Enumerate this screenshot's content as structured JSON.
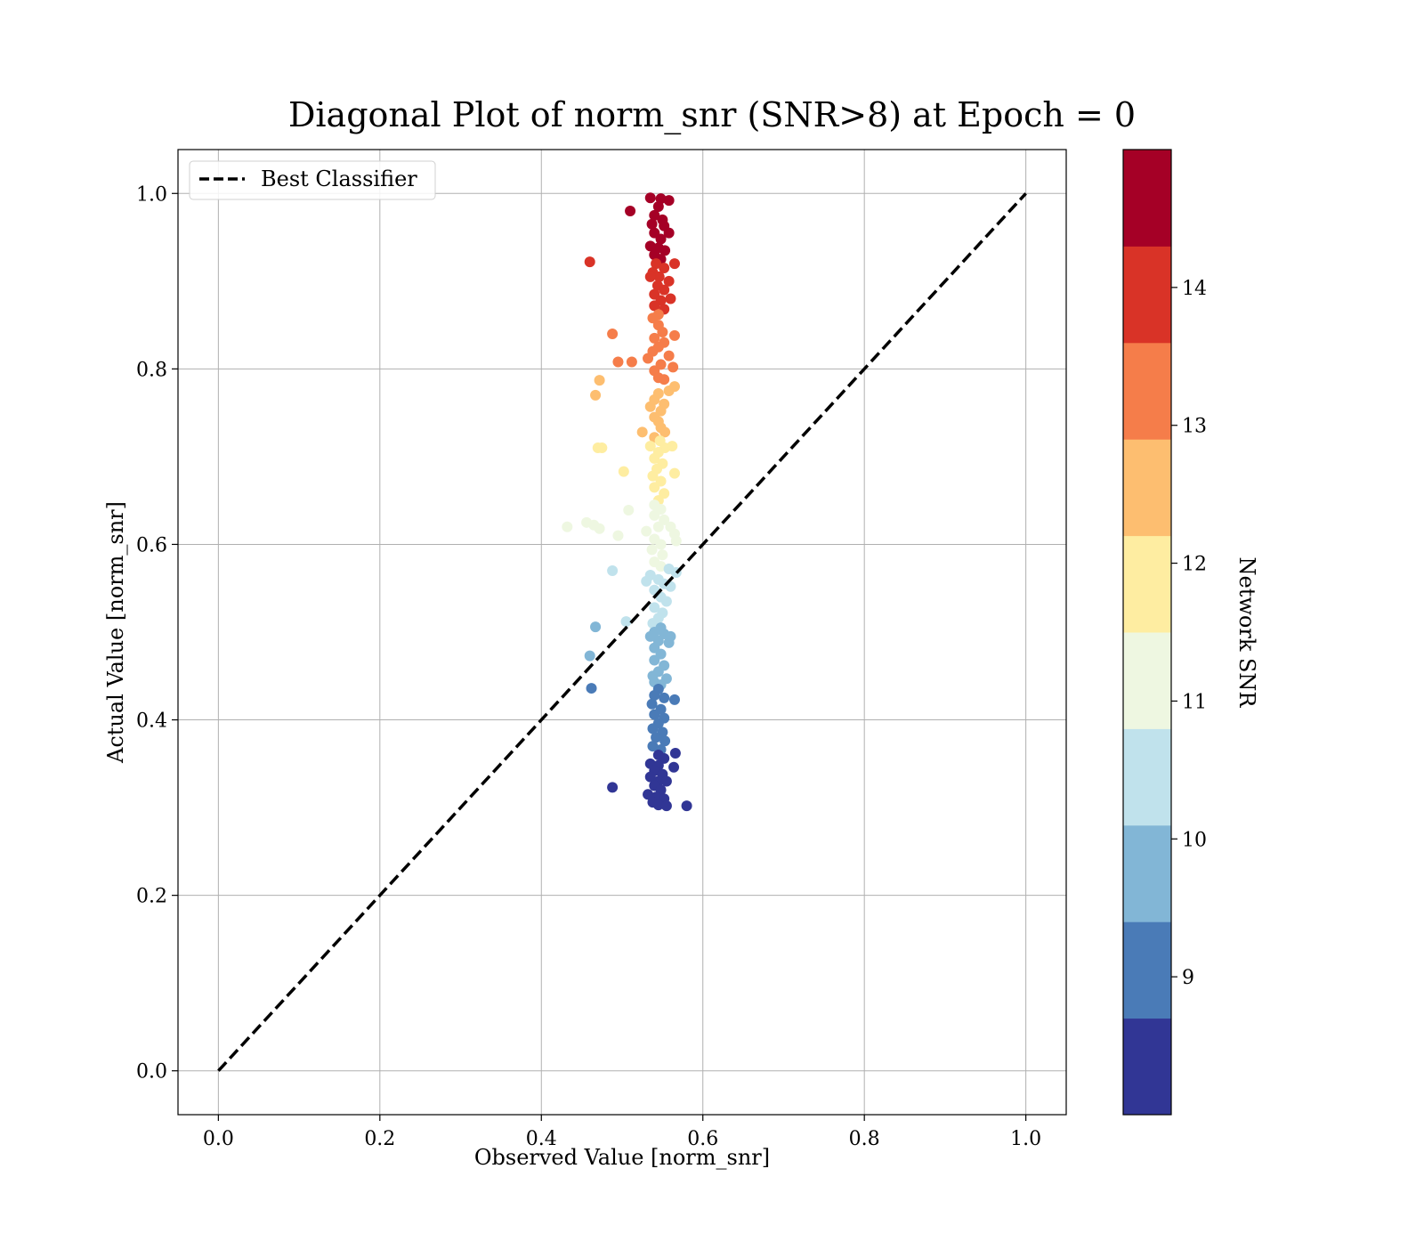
{
  "chart_data": {
    "type": "scatter",
    "title": "Diagonal Plot of norm_snr (SNR>8) at Epoch = 0",
    "xlabel": "Observed Value [norm_snr]",
    "ylabel": "Actual Value [norm_snr]",
    "xlim": [
      -0.05,
      1.05
    ],
    "ylim": [
      -0.05,
      1.05
    ],
    "xticks": [
      "0.0",
      "0.2",
      "0.4",
      "0.6",
      "0.8",
      "1.0"
    ],
    "yticks": [
      "0.0",
      "0.2",
      "0.4",
      "0.6",
      "0.8",
      "1.0"
    ],
    "grid": true,
    "legend": {
      "placement": "upper-left",
      "entries": [
        "Best Classifier"
      ]
    },
    "reference_line": {
      "label": "Best Classifier",
      "x": [
        0.0,
        1.0
      ],
      "y": [
        0.0,
        1.0
      ],
      "style": "dashed",
      "color": "#000000"
    },
    "colorbar": {
      "label": "Network SNR",
      "range": [
        8.0,
        15.0
      ],
      "ticks": [
        "9",
        "10",
        "11",
        "12",
        "13",
        "14"
      ],
      "colors": [
        "#313695",
        "#4a7bb7",
        "#82b6d6",
        "#c0e2ec",
        "#eef7e1",
        "#feeda1",
        "#fdbe70",
        "#f57d4a",
        "#d93327",
        "#a50026"
      ]
    },
    "points": [
      {
        "x": 0.535,
        "y": 0.995,
        "c": 14.9
      },
      {
        "x": 0.548,
        "y": 0.994,
        "c": 14.9
      },
      {
        "x": 0.558,
        "y": 0.992,
        "c": 14.9
      },
      {
        "x": 0.51,
        "y": 0.98,
        "c": 14.8
      },
      {
        "x": 0.545,
        "y": 0.985,
        "c": 14.8
      },
      {
        "x": 0.54,
        "y": 0.975,
        "c": 14.8
      },
      {
        "x": 0.55,
        "y": 0.97,
        "c": 14.7
      },
      {
        "x": 0.537,
        "y": 0.965,
        "c": 14.7
      },
      {
        "x": 0.552,
        "y": 0.963,
        "c": 14.7
      },
      {
        "x": 0.558,
        "y": 0.955,
        "c": 14.6
      },
      {
        "x": 0.54,
        "y": 0.955,
        "c": 14.6
      },
      {
        "x": 0.548,
        "y": 0.948,
        "c": 14.6
      },
      {
        "x": 0.535,
        "y": 0.94,
        "c": 14.5
      },
      {
        "x": 0.545,
        "y": 0.938,
        "c": 14.5
      },
      {
        "x": 0.553,
        "y": 0.935,
        "c": 14.5
      },
      {
        "x": 0.54,
        "y": 0.93,
        "c": 14.4
      },
      {
        "x": 0.548,
        "y": 0.925,
        "c": 14.3
      },
      {
        "x": 0.46,
        "y": 0.922,
        "c": 14.0
      },
      {
        "x": 0.565,
        "y": 0.92,
        "c": 14.0
      },
      {
        "x": 0.542,
        "y": 0.92,
        "c": 14.1
      },
      {
        "x": 0.552,
        "y": 0.915,
        "c": 14.0
      },
      {
        "x": 0.538,
        "y": 0.91,
        "c": 13.9
      },
      {
        "x": 0.546,
        "y": 0.905,
        "c": 13.9
      },
      {
        "x": 0.558,
        "y": 0.9,
        "c": 13.9
      },
      {
        "x": 0.535,
        "y": 0.905,
        "c": 13.8
      },
      {
        "x": 0.544,
        "y": 0.895,
        "c": 13.8
      },
      {
        "x": 0.552,
        "y": 0.89,
        "c": 13.8
      },
      {
        "x": 0.54,
        "y": 0.885,
        "c": 13.8
      },
      {
        "x": 0.56,
        "y": 0.88,
        "c": 13.7
      },
      {
        "x": 0.548,
        "y": 0.878,
        "c": 13.7
      },
      {
        "x": 0.54,
        "y": 0.872,
        "c": 13.7
      },
      {
        "x": 0.552,
        "y": 0.868,
        "c": 13.7
      },
      {
        "x": 0.545,
        "y": 0.862,
        "c": 13.6
      },
      {
        "x": 0.538,
        "y": 0.858,
        "c": 13.6
      },
      {
        "x": 0.488,
        "y": 0.84,
        "c": 13.3
      },
      {
        "x": 0.565,
        "y": 0.838,
        "c": 13.3
      },
      {
        "x": 0.545,
        "y": 0.85,
        "c": 13.4
      },
      {
        "x": 0.55,
        "y": 0.842,
        "c": 13.4
      },
      {
        "x": 0.54,
        "y": 0.835,
        "c": 13.3
      },
      {
        "x": 0.552,
        "y": 0.83,
        "c": 13.3
      },
      {
        "x": 0.545,
        "y": 0.825,
        "c": 13.2
      },
      {
        "x": 0.538,
        "y": 0.82,
        "c": 13.2
      },
      {
        "x": 0.558,
        "y": 0.815,
        "c": 13.2
      },
      {
        "x": 0.532,
        "y": 0.812,
        "c": 13.1
      },
      {
        "x": 0.495,
        "y": 0.808,
        "c": 13.0
      },
      {
        "x": 0.512,
        "y": 0.808,
        "c": 13.0
      },
      {
        "x": 0.563,
        "y": 0.802,
        "c": 13.0
      },
      {
        "x": 0.548,
        "y": 0.805,
        "c": 13.0
      },
      {
        "x": 0.54,
        "y": 0.798,
        "c": 13.0
      },
      {
        "x": 0.545,
        "y": 0.79,
        "c": 12.9
      },
      {
        "x": 0.552,
        "y": 0.788,
        "c": 12.9
      },
      {
        "x": 0.472,
        "y": 0.787,
        "c": 12.8
      },
      {
        "x": 0.565,
        "y": 0.78,
        "c": 12.8
      },
      {
        "x": 0.558,
        "y": 0.775,
        "c": 12.8
      },
      {
        "x": 0.467,
        "y": 0.77,
        "c": 12.7
      },
      {
        "x": 0.545,
        "y": 0.772,
        "c": 12.7
      },
      {
        "x": 0.54,
        "y": 0.765,
        "c": 12.7
      },
      {
        "x": 0.552,
        "y": 0.76,
        "c": 12.6
      },
      {
        "x": 0.535,
        "y": 0.757,
        "c": 12.6
      },
      {
        "x": 0.548,
        "y": 0.752,
        "c": 12.6
      },
      {
        "x": 0.54,
        "y": 0.745,
        "c": 12.5
      },
      {
        "x": 0.545,
        "y": 0.74,
        "c": 12.5
      },
      {
        "x": 0.548,
        "y": 0.733,
        "c": 12.4
      },
      {
        "x": 0.525,
        "y": 0.728,
        "c": 12.4
      },
      {
        "x": 0.553,
        "y": 0.728,
        "c": 12.4
      },
      {
        "x": 0.54,
        "y": 0.722,
        "c": 12.3
      },
      {
        "x": 0.547,
        "y": 0.718,
        "c": 12.2
      },
      {
        "x": 0.47,
        "y": 0.71,
        "c": 11.9
      },
      {
        "x": 0.475,
        "y": 0.71,
        "c": 11.9
      },
      {
        "x": 0.535,
        "y": 0.712,
        "c": 11.9
      },
      {
        "x": 0.553,
        "y": 0.71,
        "c": 11.9
      },
      {
        "x": 0.562,
        "y": 0.712,
        "c": 11.9
      },
      {
        "x": 0.545,
        "y": 0.705,
        "c": 11.8
      },
      {
        "x": 0.54,
        "y": 0.698,
        "c": 11.8
      },
      {
        "x": 0.55,
        "y": 0.692,
        "c": 11.8
      },
      {
        "x": 0.543,
        "y": 0.686,
        "c": 11.7
      },
      {
        "x": 0.502,
        "y": 0.683,
        "c": 11.7
      },
      {
        "x": 0.565,
        "y": 0.681,
        "c": 11.7
      },
      {
        "x": 0.538,
        "y": 0.678,
        "c": 11.7
      },
      {
        "x": 0.548,
        "y": 0.672,
        "c": 11.6
      },
      {
        "x": 0.54,
        "y": 0.665,
        "c": 11.6
      },
      {
        "x": 0.552,
        "y": 0.658,
        "c": 11.6
      },
      {
        "x": 0.545,
        "y": 0.65,
        "c": 11.5
      },
      {
        "x": 0.54,
        "y": 0.645,
        "c": 11.4
      },
      {
        "x": 0.508,
        "y": 0.639,
        "c": 11.3
      },
      {
        "x": 0.548,
        "y": 0.64,
        "c": 11.3
      },
      {
        "x": 0.54,
        "y": 0.633,
        "c": 11.3
      },
      {
        "x": 0.552,
        "y": 0.628,
        "c": 11.2
      },
      {
        "x": 0.456,
        "y": 0.625,
        "c": 11.2
      },
      {
        "x": 0.465,
        "y": 0.622,
        "c": 11.1
      },
      {
        "x": 0.432,
        "y": 0.62,
        "c": 11.1
      },
      {
        "x": 0.472,
        "y": 0.618,
        "c": 11.1
      },
      {
        "x": 0.56,
        "y": 0.62,
        "c": 11.1
      },
      {
        "x": 0.545,
        "y": 0.62,
        "c": 11.1
      },
      {
        "x": 0.53,
        "y": 0.615,
        "c": 11.0
      },
      {
        "x": 0.565,
        "y": 0.612,
        "c": 11.0
      },
      {
        "x": 0.495,
        "y": 0.61,
        "c": 11.0
      },
      {
        "x": 0.54,
        "y": 0.606,
        "c": 11.0
      },
      {
        "x": 0.548,
        "y": 0.6,
        "c": 11.0
      },
      {
        "x": 0.567,
        "y": 0.604,
        "c": 11.0
      },
      {
        "x": 0.537,
        "y": 0.594,
        "c": 10.9
      },
      {
        "x": 0.55,
        "y": 0.588,
        "c": 10.9
      },
      {
        "x": 0.488,
        "y": 0.57,
        "c": 10.7
      },
      {
        "x": 0.54,
        "y": 0.58,
        "c": 10.8
      },
      {
        "x": 0.548,
        "y": 0.575,
        "c": 10.8
      },
      {
        "x": 0.558,
        "y": 0.572,
        "c": 10.7
      },
      {
        "x": 0.567,
        "y": 0.568,
        "c": 10.7
      },
      {
        "x": 0.535,
        "y": 0.565,
        "c": 10.7
      },
      {
        "x": 0.545,
        "y": 0.56,
        "c": 10.6
      },
      {
        "x": 0.53,
        "y": 0.558,
        "c": 10.6
      },
      {
        "x": 0.552,
        "y": 0.555,
        "c": 10.6
      },
      {
        "x": 0.56,
        "y": 0.552,
        "c": 10.5
      },
      {
        "x": 0.54,
        "y": 0.548,
        "c": 10.5
      },
      {
        "x": 0.548,
        "y": 0.54,
        "c": 10.5
      },
      {
        "x": 0.555,
        "y": 0.535,
        "c": 10.4
      },
      {
        "x": 0.54,
        "y": 0.528,
        "c": 10.4
      },
      {
        "x": 0.55,
        "y": 0.522,
        "c": 10.4
      },
      {
        "x": 0.545,
        "y": 0.516,
        "c": 10.3
      },
      {
        "x": 0.505,
        "y": 0.512,
        "c": 10.3
      },
      {
        "x": 0.538,
        "y": 0.51,
        "c": 10.2
      },
      {
        "x": 0.467,
        "y": 0.506,
        "c": 9.9
      },
      {
        "x": 0.548,
        "y": 0.505,
        "c": 10.0
      },
      {
        "x": 0.54,
        "y": 0.5,
        "c": 9.9
      },
      {
        "x": 0.552,
        "y": 0.498,
        "c": 9.9
      },
      {
        "x": 0.56,
        "y": 0.495,
        "c": 9.9
      },
      {
        "x": 0.535,
        "y": 0.495,
        "c": 9.9
      },
      {
        "x": 0.545,
        "y": 0.49,
        "c": 9.8
      },
      {
        "x": 0.558,
        "y": 0.488,
        "c": 9.8
      },
      {
        "x": 0.54,
        "y": 0.482,
        "c": 9.8
      },
      {
        "x": 0.46,
        "y": 0.473,
        "c": 9.7
      },
      {
        "x": 0.548,
        "y": 0.475,
        "c": 9.7
      },
      {
        "x": 0.54,
        "y": 0.468,
        "c": 9.7
      },
      {
        "x": 0.552,
        "y": 0.462,
        "c": 9.6
      },
      {
        "x": 0.545,
        "y": 0.455,
        "c": 9.6
      },
      {
        "x": 0.538,
        "y": 0.45,
        "c": 9.6
      },
      {
        "x": 0.555,
        "y": 0.447,
        "c": 9.5
      },
      {
        "x": 0.54,
        "y": 0.443,
        "c": 9.5
      },
      {
        "x": 0.548,
        "y": 0.44,
        "c": 9.5
      },
      {
        "x": 0.462,
        "y": 0.436,
        "c": 9.3
      },
      {
        "x": 0.545,
        "y": 0.435,
        "c": 9.3
      },
      {
        "x": 0.54,
        "y": 0.428,
        "c": 9.3
      },
      {
        "x": 0.552,
        "y": 0.425,
        "c": 9.2
      },
      {
        "x": 0.565,
        "y": 0.423,
        "c": 9.2
      },
      {
        "x": 0.537,
        "y": 0.418,
        "c": 9.2
      },
      {
        "x": 0.548,
        "y": 0.412,
        "c": 9.1
      },
      {
        "x": 0.54,
        "y": 0.406,
        "c": 9.1
      },
      {
        "x": 0.552,
        "y": 0.402,
        "c": 9.1
      },
      {
        "x": 0.545,
        "y": 0.396,
        "c": 9.0
      },
      {
        "x": 0.538,
        "y": 0.39,
        "c": 9.0
      },
      {
        "x": 0.55,
        "y": 0.386,
        "c": 9.0
      },
      {
        "x": 0.542,
        "y": 0.38,
        "c": 8.9
      },
      {
        "x": 0.553,
        "y": 0.376,
        "c": 8.9
      },
      {
        "x": 0.538,
        "y": 0.37,
        "c": 8.9
      },
      {
        "x": 0.548,
        "y": 0.366,
        "c": 8.8
      },
      {
        "x": 0.566,
        "y": 0.362,
        "c": 8.7
      },
      {
        "x": 0.545,
        "y": 0.36,
        "c": 8.7
      },
      {
        "x": 0.552,
        "y": 0.356,
        "c": 8.7
      },
      {
        "x": 0.535,
        "y": 0.35,
        "c": 8.6
      },
      {
        "x": 0.545,
        "y": 0.348,
        "c": 8.6
      },
      {
        "x": 0.564,
        "y": 0.346,
        "c": 8.6
      },
      {
        "x": 0.54,
        "y": 0.342,
        "c": 8.5
      },
      {
        "x": 0.55,
        "y": 0.338,
        "c": 8.5
      },
      {
        "x": 0.535,
        "y": 0.335,
        "c": 8.5
      },
      {
        "x": 0.545,
        "y": 0.33,
        "c": 8.4
      },
      {
        "x": 0.555,
        "y": 0.33,
        "c": 8.4
      },
      {
        "x": 0.54,
        "y": 0.325,
        "c": 8.4
      },
      {
        "x": 0.488,
        "y": 0.323,
        "c": 8.3
      },
      {
        "x": 0.548,
        "y": 0.32,
        "c": 8.3
      },
      {
        "x": 0.532,
        "y": 0.315,
        "c": 8.3
      },
      {
        "x": 0.542,
        "y": 0.312,
        "c": 8.2
      },
      {
        "x": 0.552,
        "y": 0.31,
        "c": 8.2
      },
      {
        "x": 0.538,
        "y": 0.306,
        "c": 8.2
      },
      {
        "x": 0.545,
        "y": 0.303,
        "c": 8.1
      },
      {
        "x": 0.555,
        "y": 0.302,
        "c": 8.1
      },
      {
        "x": 0.58,
        "y": 0.302,
        "c": 8.1
      }
    ]
  }
}
